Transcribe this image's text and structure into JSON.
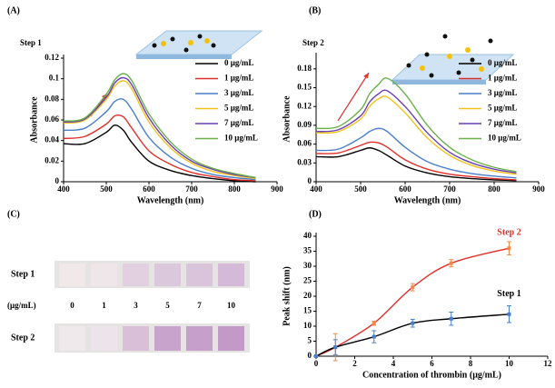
{
  "chart_data": [
    {
      "type": "line",
      "panel_label": "(A)",
      "annotation": "Step 1",
      "xlabel": "Wavelength (nm)",
      "ylabel": "Absorbance",
      "x": [
        400,
        450,
        500,
        520,
        540,
        560,
        600,
        650,
        700,
        750,
        800,
        850
      ],
      "xlim": [
        400,
        900
      ],
      "xticks": [
        400,
        500,
        600,
        700,
        800,
        900
      ],
      "ylim": [
        0,
        0.12
      ],
      "yticks": [
        0,
        0.02,
        0.04,
        0.06,
        0.08,
        0.1,
        0.12
      ],
      "legend": "upper right",
      "series": [
        {
          "name": "0  μg/mL",
          "color": "#000000",
          "values": [
            0.037,
            0.037,
            0.048,
            0.055,
            0.05,
            0.038,
            0.02,
            0.011,
            0.006,
            0.003,
            0.001,
            0
          ]
        },
        {
          "name": "1  μg/mL",
          "color": "#e0302c",
          "values": [
            0.042,
            0.044,
            0.056,
            0.064,
            0.063,
            0.052,
            0.03,
            0.017,
            0.009,
            0.005,
            0.002,
            0.001
          ]
        },
        {
          "name": "3  μg/mL",
          "color": "#4a7ec9",
          "values": [
            0.05,
            0.052,
            0.068,
            0.078,
            0.08,
            0.07,
            0.043,
            0.024,
            0.013,
            0.007,
            0.004,
            0.002
          ]
        },
        {
          "name": "5  μg/mL",
          "color": "#f2c21b",
          "values": [
            0.057,
            0.06,
            0.08,
            0.093,
            0.098,
            0.09,
            0.058,
            0.033,
            0.018,
            0.01,
            0.006,
            0.003
          ]
        },
        {
          "name": "7  μg/mL",
          "color": "#6a3fb0",
          "values": [
            0.058,
            0.061,
            0.082,
            0.096,
            0.101,
            0.094,
            0.062,
            0.036,
            0.02,
            0.012,
            0.007,
            0.004
          ]
        },
        {
          "name": "10  μg/mL",
          "color": "#6ab04a",
          "values": [
            0.059,
            0.062,
            0.085,
            0.099,
            0.105,
            0.098,
            0.066,
            0.039,
            0.022,
            0.013,
            0.008,
            0.004
          ]
        }
      ]
    },
    {
      "type": "line",
      "panel_label": "(B)",
      "annotation": "Step 2",
      "xlabel": "Wavelength (nm)",
      "ylabel": "Absorbance",
      "x": [
        400,
        450,
        500,
        520,
        540,
        560,
        600,
        650,
        700,
        750,
        800,
        850
      ],
      "xlim": [
        400,
        900
      ],
      "xticks": [
        400,
        500,
        600,
        700,
        800,
        900
      ],
      "ylim": [
        0,
        0.2
      ],
      "yticks": [
        0,
        0.03,
        0.06,
        0.09,
        0.12,
        0.15,
        0.18
      ],
      "legend": "upper right",
      "series": [
        {
          "name": "0  μg/mL",
          "color": "#000000",
          "values": [
            0.04,
            0.04,
            0.05,
            0.054,
            0.05,
            0.042,
            0.025,
            0.014,
            0.008,
            0.005,
            0.003,
            0.002
          ]
        },
        {
          "name": "1  μg/mL",
          "color": "#e0302c",
          "values": [
            0.045,
            0.046,
            0.058,
            0.063,
            0.062,
            0.055,
            0.035,
            0.02,
            0.012,
            0.008,
            0.005,
            0.003
          ]
        },
        {
          "name": "3  μg/mL",
          "color": "#4a7ec9",
          "values": [
            0.05,
            0.052,
            0.07,
            0.08,
            0.085,
            0.08,
            0.055,
            0.032,
            0.02,
            0.013,
            0.009,
            0.006
          ]
        },
        {
          "name": "5  μg/mL",
          "color": "#f2c21b",
          "values": [
            0.078,
            0.08,
            0.1,
            0.12,
            0.132,
            0.135,
            0.11,
            0.07,
            0.042,
            0.026,
            0.017,
            0.012
          ]
        },
        {
          "name": "7  μg/mL",
          "color": "#6a3fb0",
          "values": [
            0.08,
            0.083,
            0.105,
            0.127,
            0.14,
            0.145,
            0.12,
            0.078,
            0.047,
            0.03,
            0.02,
            0.014
          ]
        },
        {
          "name": "10  μg/mL",
          "color": "#6ab04a",
          "values": [
            0.085,
            0.088,
            0.115,
            0.14,
            0.155,
            0.165,
            0.14,
            0.09,
            0.055,
            0.035,
            0.023,
            0.016
          ]
        }
      ]
    },
    {
      "type": "errorline",
      "panel_label": "(D)",
      "xlabel": "Concentration of thrombin (μg/mL)",
      "ylabel": "Peak shift (nm)",
      "x": [
        0,
        1,
        3,
        5,
        7,
        10
      ],
      "xlim": [
        0,
        12
      ],
      "xticks": [
        0,
        2,
        4,
        6,
        8,
        10,
        12
      ],
      "ylim": [
        0,
        40
      ],
      "yticks": [
        0,
        5,
        10,
        15,
        20,
        25,
        30,
        35,
        40
      ],
      "series": [
        {
          "name": "Step 2",
          "color": "#e0302c",
          "marker_color": "#f08a4b",
          "values": [
            0,
            3,
            11,
            23,
            31,
            36
          ],
          "errors": [
            0,
            4.5,
            0.7,
            1.2,
            1.2,
            2.2
          ]
        },
        {
          "name": "Step 1",
          "color": "#000000",
          "marker_color": "#4a7ec9",
          "values": [
            0,
            3,
            6.5,
            11,
            12.5,
            14
          ],
          "errors": [
            0,
            2.5,
            2,
            1.3,
            2.2,
            2.8
          ]
        }
      ]
    }
  ],
  "panel_c": {
    "label": "(C)",
    "rows": [
      "Step 1",
      "Step 2"
    ],
    "unit": "(μg/mL)",
    "concentrations": [
      "0",
      "1",
      "3",
      "5",
      "7",
      "10"
    ]
  }
}
